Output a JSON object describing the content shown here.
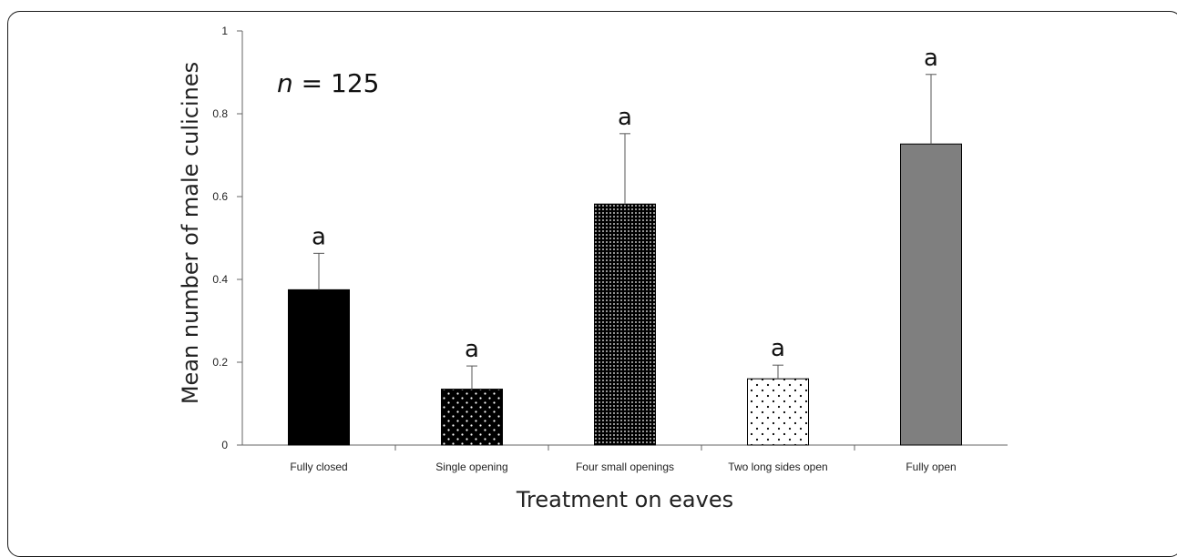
{
  "chart_data": {
    "type": "bar",
    "title": "",
    "xlabel": "Treatment on eaves",
    "ylabel": "Mean number of male culicines",
    "annotation": {
      "italic": "n",
      "rest": " = 125"
    },
    "ylim": [
      0,
      1
    ],
    "yticks": [
      0,
      0.2,
      0.4,
      0.6,
      0.8,
      1
    ],
    "ytick_labels": [
      "0",
      "0.2",
      "0.4",
      "0.6",
      "0.8",
      "1"
    ],
    "grid": false,
    "legend": "none",
    "categories": [
      "Fully closed",
      "Single opening",
      "Four small openings",
      "Two long sides open",
      "Fully open"
    ],
    "values": [
      0.375,
      0.135,
      0.582,
      0.16,
      0.727
    ],
    "error_upper": [
      0.088,
      0.056,
      0.17,
      0.033,
      0.168
    ],
    "significance": [
      "a",
      "a",
      "a",
      "a",
      "a"
    ],
    "fills": [
      "solid-black",
      "black-white-dots",
      "dense-dots",
      "white-black-dots",
      "solid-gray"
    ],
    "colors": {
      "black": "#000000",
      "gray": "#7f7f7f",
      "white": "#ffffff"
    }
  }
}
